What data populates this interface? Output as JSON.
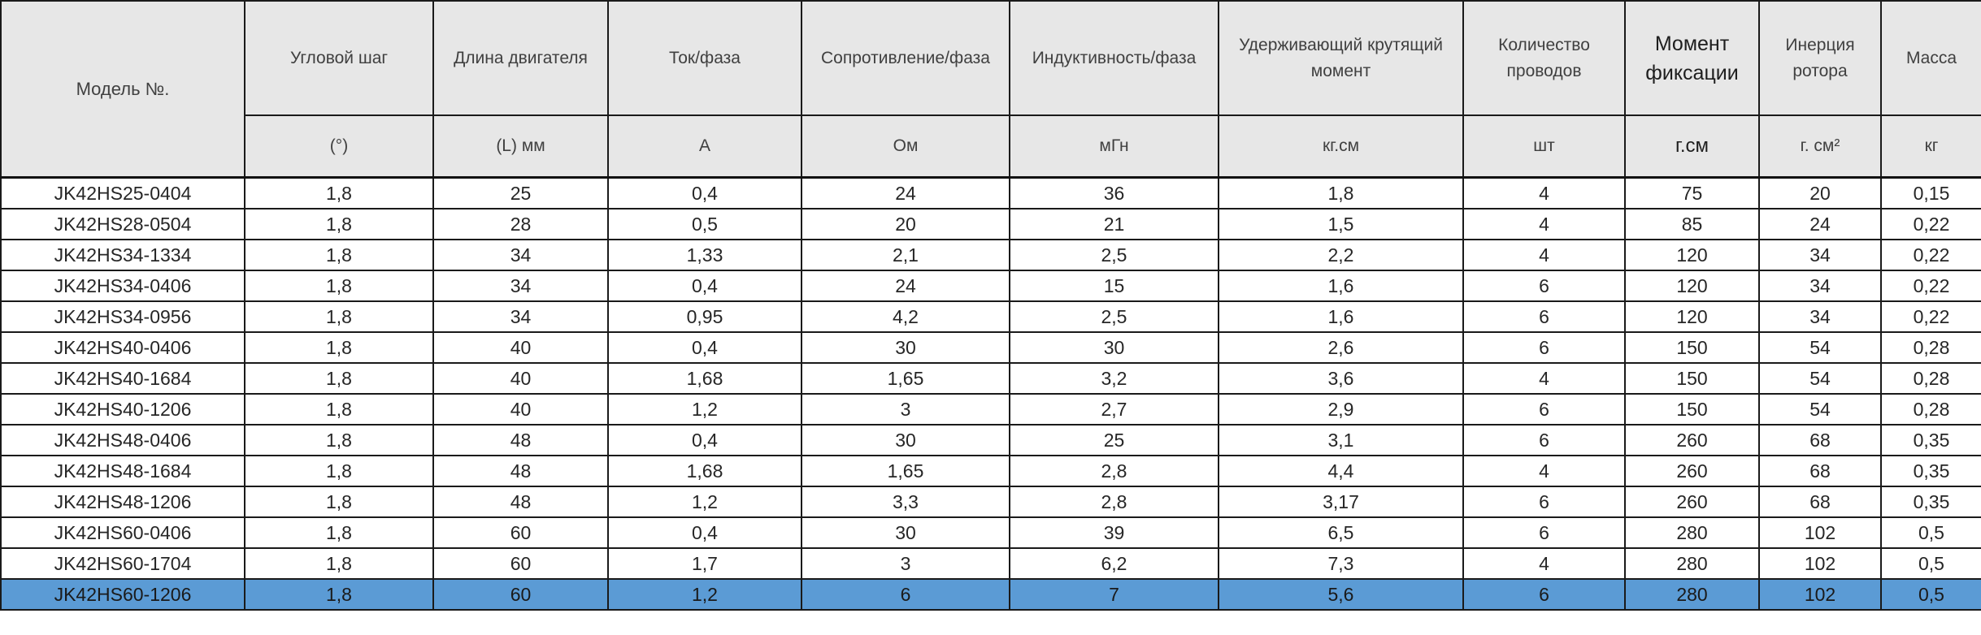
{
  "table": {
    "model_header": "Модель №.",
    "columns": [
      {
        "name": "Угловой шаг",
        "unit": "(°)"
      },
      {
        "name": "Длина двигателя",
        "unit": "(L) мм"
      },
      {
        "name": "Ток/фаза",
        "unit": "А"
      },
      {
        "name": "Сопротивление/фаза",
        "unit": "Ом"
      },
      {
        "name": "Индуктивность/фаза",
        "unit": "мГн"
      },
      {
        "name": "Удерживающий крутящий момент",
        "unit": "кг.см"
      },
      {
        "name": "Количество проводов",
        "unit": "шт"
      },
      {
        "name": "Момент фиксации",
        "unit": "г.см"
      },
      {
        "name": "Инерция ротора",
        "unit": "г. см²"
      },
      {
        "name": "Масса",
        "unit": "кг"
      }
    ],
    "rows": [
      {
        "model": "JK42HS25-0404",
        "cells": [
          "1,8",
          "25",
          "0,4",
          "24",
          "36",
          "1,8",
          "4",
          "75",
          "20",
          "0,15"
        ]
      },
      {
        "model": "JK42HS28-0504",
        "cells": [
          "1,8",
          "28",
          "0,5",
          "20",
          "21",
          "1,5",
          "4",
          "85",
          "24",
          "0,22"
        ]
      },
      {
        "model": "JK42HS34-1334",
        "cells": [
          "1,8",
          "34",
          "1,33",
          "2,1",
          "2,5",
          "2,2",
          "4",
          "120",
          "34",
          "0,22"
        ]
      },
      {
        "model": "JK42HS34-0406",
        "cells": [
          "1,8",
          "34",
          "0,4",
          "24",
          "15",
          "1,6",
          "6",
          "120",
          "34",
          "0,22"
        ]
      },
      {
        "model": "JK42HS34-0956",
        "cells": [
          "1,8",
          "34",
          "0,95",
          "4,2",
          "2,5",
          "1,6",
          "6",
          "120",
          "34",
          "0,22"
        ]
      },
      {
        "model": "JK42HS40-0406",
        "cells": [
          "1,8",
          "40",
          "0,4",
          "30",
          "30",
          "2,6",
          "6",
          "150",
          "54",
          "0,28"
        ]
      },
      {
        "model": "JK42HS40-1684",
        "cells": [
          "1,8",
          "40",
          "1,68",
          "1,65",
          "3,2",
          "3,6",
          "4",
          "150",
          "54",
          "0,28"
        ]
      },
      {
        "model": "JK42HS40-1206",
        "cells": [
          "1,8",
          "40",
          "1,2",
          "3",
          "2,7",
          "2,9",
          "6",
          "150",
          "54",
          "0,28"
        ]
      },
      {
        "model": "JK42HS48-0406",
        "cells": [
          "1,8",
          "48",
          "0,4",
          "30",
          "25",
          "3,1",
          "6",
          "260",
          "68",
          "0,35"
        ]
      },
      {
        "model": "JK42HS48-1684",
        "cells": [
          "1,8",
          "48",
          "1,68",
          "1,65",
          "2,8",
          "4,4",
          "4",
          "260",
          "68",
          "0,35"
        ]
      },
      {
        "model": "JK42HS48-1206",
        "cells": [
          "1,8",
          "48",
          "1,2",
          "3,3",
          "2,8",
          "3,17",
          "6",
          "260",
          "68",
          "0,35"
        ]
      },
      {
        "model": "JK42HS60-0406",
        "cells": [
          "1,8",
          "60",
          "0,4",
          "30",
          "39",
          "6,5",
          "6",
          "280",
          "102",
          "0,5"
        ]
      },
      {
        "model": "JK42HS60-1704",
        "cells": [
          "1,8",
          "60",
          "1,7",
          "3",
          "6,2",
          "7,3",
          "4",
          "280",
          "102",
          "0,5"
        ]
      },
      {
        "model": "JK42HS60-1206",
        "cells": [
          "1,8",
          "60",
          "1,2",
          "6",
          "7",
          "5,6",
          "6",
          "280",
          "102",
          "0,5"
        ],
        "selected": true
      }
    ]
  },
  "colors": {
    "header_bg": "#e7e7e7",
    "selected_row": "#5b9bd5",
    "border": "#1a1a1a"
  }
}
